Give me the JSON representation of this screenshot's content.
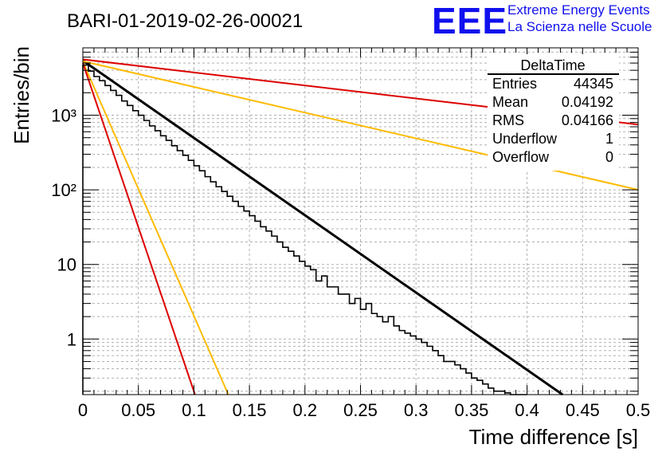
{
  "header": {
    "title": "BARI-01-2019-02-26-00021",
    "logo_text": "EEE",
    "logo_line1": "Extreme Energy Events",
    "logo_line2": "La Scienza nelle Scuole",
    "logo_color": "#1010ee"
  },
  "stats": {
    "name": "DeltaTime",
    "rows": [
      {
        "label": "Entries",
        "value": "44345"
      },
      {
        "label": "Mean",
        "value": "0.04192"
      },
      {
        "label": "RMS",
        "value": "0.04166"
      },
      {
        "label": "Underflow",
        "value": "1"
      },
      {
        "label": "Overflow",
        "value": "0"
      }
    ]
  },
  "chart_data": {
    "type": "histogram",
    "xlabel": "Time difference [s]",
    "ylabel": "Entries/bin",
    "xlim": [
      0,
      0.5
    ],
    "ylim": [
      0.18,
      8000
    ],
    "yscale": "log",
    "grid": true,
    "x_ticks": [
      0,
      0.05,
      0.1,
      0.15,
      0.2,
      0.25,
      0.3,
      0.35,
      0.4,
      0.45,
      0.5
    ],
    "x_tick_labels": [
      "0",
      "0.05",
      "0.1",
      "0.15",
      "0.2",
      "0.25",
      "0.3",
      "0.35",
      "0.4",
      "0.45",
      "0.5"
    ],
    "y_ticks": [
      1,
      10,
      100,
      1000
    ],
    "y_tick_labels": [
      "1",
      "10",
      "10²",
      "10³"
    ],
    "bin_width": 0.005,
    "histogram": [
      4700,
      3900,
      3300,
      2900,
      2500,
      2150,
      1850,
      1550,
      1350,
      1150,
      1000,
      850,
      720,
      620,
      530,
      460,
      390,
      335,
      290,
      248,
      210,
      180,
      150,
      128,
      110,
      95,
      82,
      70,
      60,
      52,
      45,
      38,
      32,
      28,
      24,
      20,
      17,
      15,
      13,
      11,
      9.5,
      8.5,
      6,
      7,
      5,
      5,
      4,
      4,
      3,
      3.5,
      2.5,
      3,
      2.2,
      2,
      1.7,
      2,
      1.5,
      1.3,
      1.2,
      1.1,
      1,
      0.9,
      0.8,
      0.7,
      0.6,
      0.5,
      0.5,
      0.45,
      0.4,
      0.35,
      0.3,
      0.28,
      0.25,
      0.22,
      0.2,
      0.2,
      0.19,
      0.18,
      0.18,
      0.18
    ],
    "fit_lines": [
      {
        "name": "fit",
        "color": "#000000",
        "width": 3,
        "x0": 0,
        "y0": 5400,
        "x1": 0.432,
        "y1": 0.18
      },
      {
        "name": "red-upper",
        "color": "#dd0000",
        "width": 2,
        "x0": 0,
        "y0": 5600,
        "x1": 0.5,
        "y1": 750
      },
      {
        "name": "yellow-upper",
        "color": "#ffbb00",
        "width": 2,
        "x0": 0,
        "y0": 5300,
        "x1": 0.5,
        "y1": 100
      },
      {
        "name": "yellow-lower",
        "color": "#ffbb00",
        "width": 2,
        "x0": 0,
        "y0": 5200,
        "x1": 0.131,
        "y1": 0.18
      },
      {
        "name": "red-lower",
        "color": "#dd0000",
        "width": 2,
        "x0": 0,
        "y0": 5000,
        "x1": 0.101,
        "y1": 0.18
      }
    ]
  }
}
